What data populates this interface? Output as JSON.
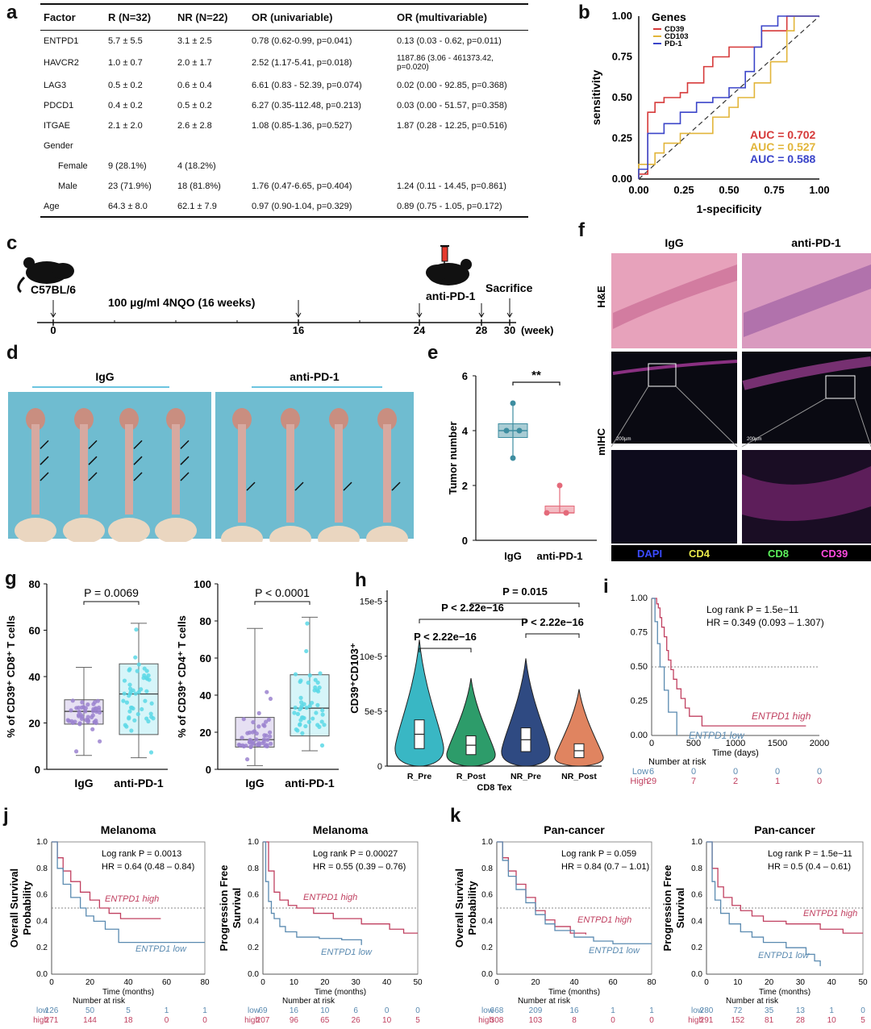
{
  "panels": {
    "a": "a",
    "b": "b",
    "c": "c",
    "d": "d",
    "e": "e",
    "f": "f",
    "g": "g",
    "h": "h",
    "i": "i",
    "j": "j",
    "k": "k"
  },
  "table": {
    "headers": [
      "Factor",
      "R (N=32)",
      "NR (N=22)",
      "OR (univariable)",
      "OR (multivariable)"
    ],
    "rows": [
      [
        "ENTPD1",
        "5.7 ± 5.5",
        "3.1 ± 2.5",
        "0.78 (0.62-0.99, p=0.041)",
        "0.13 (0.03 - 0.62, p=0.011)"
      ],
      [
        "HAVCR2",
        "1.0 ± 0.7",
        "2.0 ± 1.7",
        "2.52 (1.17-5.41, p=0.018)",
        "1187.86 (3.06 - 461373.42,\np=0.020)"
      ],
      [
        "LAG3",
        "0.5 ± 0.2",
        "0.6 ± 0.4",
        "6.61 (0.83 - 52.39, p=0.074)",
        "0.02 (0.00 - 92.85, p=0.368)"
      ],
      [
        "PDCD1",
        "0.4 ± 0.2",
        "0.5 ± 0.2",
        "6.27 (0.35-112.48, p=0.213)",
        "0.03 (0.00 - 51.57, p=0.358)"
      ],
      [
        "ITGAE",
        "2.1 ± 2.0",
        "2.6 ± 2.8",
        "1.08 (0.85-1.36, p=0.527)",
        "1.87 (0.28 - 12.25, p=0.516)"
      ],
      [
        "Gender",
        "",
        "",
        "",
        ""
      ],
      [
        "Female",
        "9 (28.1%)",
        "4 (18.2%)",
        "",
        ""
      ],
      [
        "Male",
        "23 (71.9%)",
        "18 (81.8%)",
        "1.76 (0.47-6.65, p=0.404)",
        "1.24 (0.11 - 14.45, p=0.861)"
      ],
      [
        "Age",
        "64.3 ± 8.0",
        "62.1 ± 7.9",
        "0.97 (0.90-1.04, p=0.329)",
        "0.89 (0.75 - 1.05, p=0.172)"
      ]
    ]
  },
  "chart_data": [
    {
      "panel": "b",
      "type": "line",
      "xlabel": "1-specificity",
      "ylabel": "sensitivity",
      "xlim": [
        0,
        1
      ],
      "ylim": [
        0,
        1
      ],
      "ticks": [
        "0.00",
        "0.25",
        "0.50",
        "0.75",
        "1.00"
      ],
      "legend_title": "Genes",
      "series": [
        {
          "name": "CD39",
          "color": "#d63a3a",
          "auc": "AUC = 0.702",
          "x": [
            0,
            0,
            0.05,
            0.05,
            0.09,
            0.09,
            0.14,
            0.14,
            0.23,
            0.23,
            0.27,
            0.27,
            0.36,
            0.36,
            0.41,
            0.41,
            0.5,
            0.5,
            0.68,
            0.68,
            0.82,
            0.82,
            1
          ],
          "y": [
            0,
            0.03,
            0.03,
            0.41,
            0.41,
            0.47,
            0.47,
            0.5,
            0.5,
            0.53,
            0.53,
            0.59,
            0.59,
            0.69,
            0.69,
            0.75,
            0.75,
            0.81,
            0.81,
            0.91,
            0.91,
            1,
            1
          ]
        },
        {
          "name": "CD103",
          "color": "#e2b53a",
          "auc": "AUC = 0.527",
          "x": [
            0,
            0,
            0.09,
            0.09,
            0.14,
            0.14,
            0.23,
            0.23,
            0.41,
            0.41,
            0.5,
            0.5,
            0.55,
            0.55,
            0.64,
            0.64,
            0.73,
            0.73,
            0.82,
            0.82,
            0.86,
            0.86,
            1
          ],
          "y": [
            0,
            0.09,
            0.09,
            0.16,
            0.16,
            0.22,
            0.22,
            0.28,
            0.28,
            0.38,
            0.38,
            0.44,
            0.44,
            0.5,
            0.5,
            0.59,
            0.59,
            0.72,
            0.72,
            0.91,
            0.91,
            1,
            1
          ]
        },
        {
          "name": "PD-1",
          "color": "#3b45c9",
          "auc": "AUC = 0.588",
          "x": [
            0,
            0,
            0.05,
            0.05,
            0.14,
            0.14,
            0.23,
            0.23,
            0.32,
            0.32,
            0.41,
            0.41,
            0.5,
            0.5,
            0.59,
            0.59,
            0.64,
            0.64,
            0.68,
            0.68,
            0.77,
            0.77,
            1
          ],
          "y": [
            0,
            0.06,
            0.06,
            0.28,
            0.28,
            0.34,
            0.34,
            0.41,
            0.41,
            0.47,
            0.47,
            0.5,
            0.5,
            0.56,
            0.56,
            0.66,
            0.66,
            0.81,
            0.81,
            0.94,
            0.94,
            1,
            1
          ]
        }
      ]
    },
    {
      "panel": "e",
      "type": "scatter",
      "ylabel": "Tumor number",
      "ylim": [
        0,
        6
      ],
      "yticks": [
        "0",
        "2",
        "4",
        "6"
      ],
      "significance": "**",
      "categories": [
        "IgG",
        "anti-PD-1"
      ],
      "groups": [
        {
          "name": "IgG",
          "values": [
            5,
            4,
            4,
            3
          ],
          "color": "#3d8da0"
        },
        {
          "name": "anti-PD-1",
          "values": [
            2,
            1,
            1,
            1
          ],
          "color": "#e46a7a"
        }
      ]
    },
    {
      "panel": "g1",
      "type": "scatter",
      "ylabel": "% of CD39⁺ CD8⁺ T cells",
      "ylim": [
        0,
        80
      ],
      "yticks": [
        "0",
        "20",
        "40",
        "60",
        "80"
      ],
      "pvalue": "P = 0.0069",
      "categories": [
        "IgG",
        "anti-PD-1"
      ],
      "box": [
        {
          "min": 6,
          "q1": 19.5,
          "median": 25,
          "q3": 30,
          "max": 44
        },
        {
          "min": 5,
          "q1": 15,
          "median": 32.5,
          "q3": 45.5,
          "max": 63
        }
      ]
    },
    {
      "panel": "g2",
      "type": "scatter",
      "ylabel": "% of CD39⁺ CD4⁺ T cells",
      "ylim": [
        0,
        100
      ],
      "yticks": [
        "0",
        "20",
        "40",
        "60",
        "80",
        "100"
      ],
      "pvalue": "P < 0.0001",
      "categories": [
        "IgG",
        "anti-PD-1"
      ],
      "box": [
        {
          "min": 2,
          "q1": 12,
          "median": 16,
          "q3": 28,
          "max": 76
        },
        {
          "min": 10,
          "q1": 18,
          "median": 33,
          "q3": 51,
          "max": 82
        }
      ]
    },
    {
      "panel": "h",
      "type": "violin",
      "ylabel": "CD39⁺CD103⁺",
      "xlabel": "CD8 Tex",
      "yticks": [
        "0",
        "5e-5",
        "10e-5",
        "15e-5"
      ],
      "categories": [
        "R_Pre",
        "R_Post",
        "NR_Pre",
        "NR_Post"
      ],
      "medians": [
        2.9,
        1.9,
        2.4,
        1.4
      ],
      "colors": [
        "#39b7c4",
        "#2d9c6a",
        "#2f4a82",
        "#e08460"
      ],
      "comparisons": [
        "P < 2.22e−16",
        "P < 2.22e−16",
        "P < 2.22e−16",
        "P = 0.015"
      ]
    },
    {
      "panel": "i",
      "type": "line",
      "xlabel": "Time (days)",
      "xlim": [
        0,
        2000
      ],
      "ylim": [
        0,
        1
      ],
      "xticks": [
        "0",
        "500",
        "1000",
        "1500",
        "2000"
      ],
      "yticks": [
        "0.00",
        "0.25",
        "0.50",
        "0.75",
        "1.00"
      ],
      "annotation": [
        "Log rank P = 1.5e−11",
        "HR = 0.349 (0.093 – 1.307)"
      ],
      "series": [
        {
          "name": "ENTPD1 high",
          "color": "#c04060",
          "x": [
            0,
            60,
            80,
            100,
            120,
            150,
            180,
            200,
            230,
            260,
            300,
            350,
            400,
            450,
            600,
            800,
            1000,
            1400,
            1500,
            1840
          ],
          "y": [
            1,
            0.96,
            0.93,
            0.86,
            0.79,
            0.72,
            0.62,
            0.55,
            0.48,
            0.41,
            0.34,
            0.27,
            0.2,
            0.14,
            0.07,
            0.07,
            0.07,
            0.07,
            0.07,
            0.07
          ]
        },
        {
          "name": "ENTPD1 low",
          "color": "#5a8ab0",
          "x": [
            0,
            40,
            70,
            100,
            150,
            200,
            260,
            300
          ],
          "y": [
            1,
            0.83,
            0.67,
            0.5,
            0.33,
            0.17,
            0.17,
            0
          ]
        }
      ],
      "risk_title": "Number at risk",
      "risk": [
        {
          "name": "Low",
          "values": [
            "6",
            "0",
            "0",
            "0",
            "0"
          ]
        },
        {
          "name": "High",
          "values": [
            "29",
            "7",
            "2",
            "1",
            "0"
          ]
        }
      ]
    },
    {
      "panel": "j1",
      "type": "line",
      "title": "Melanoma",
      "xlabel": "Time (months)",
      "ylabel": "Overall Survival Probability",
      "xlim": [
        0,
        80
      ],
      "xticks": [
        "0",
        "20",
        "40",
        "60",
        "80"
      ],
      "yticks": [
        "0.0",
        "0.2",
        "0.4",
        "0.6",
        "0.8",
        "1.0"
      ],
      "annotation": [
        "Log rank P = 0.0013",
        "HR = 0.64 (0.48 – 0.84)"
      ],
      "series": [
        {
          "name": "ENTPD1 high",
          "color": "#c04060",
          "x": [
            0,
            3,
            6,
            10,
            15,
            20,
            25,
            30,
            36,
            38,
            57
          ],
          "y": [
            1,
            0.88,
            0.78,
            0.7,
            0.62,
            0.56,
            0.5,
            0.46,
            0.42,
            0.42,
            0.42
          ]
        },
        {
          "name": "ENTPD1 low",
          "color": "#5a8ab0",
          "x": [
            0,
            3,
            6,
            10,
            15,
            18,
            22,
            28,
            35,
            40,
            80
          ],
          "y": [
            1,
            0.8,
            0.68,
            0.58,
            0.5,
            0.44,
            0.4,
            0.34,
            0.24,
            0.24,
            0.24
          ]
        }
      ],
      "risk_title": "Number at risk",
      "risk": [
        {
          "name": "low",
          "values": [
            "126",
            "50",
            "5",
            "1",
            "1"
          ]
        },
        {
          "name": "high",
          "values": [
            "271",
            "144",
            "18",
            "0",
            "0"
          ]
        }
      ]
    },
    {
      "panel": "j2",
      "type": "line",
      "title": "Melanoma",
      "xlabel": "Time (months)",
      "ylabel": "Progression Free Survival",
      "xlim": [
        0,
        55
      ],
      "xticks": [
        "0",
        "10",
        "20",
        "30",
        "40",
        "50"
      ],
      "yticks": [
        "0.0",
        "0.2",
        "0.4",
        "0.6",
        "0.8",
        "1.0"
      ],
      "annotation": [
        "Log rank P = 0.00027",
        "HR = 0.55 (0.39 – 0.76)"
      ],
      "series": [
        {
          "name": "ENTPD1 high",
          "color": "#c04060",
          "x": [
            0,
            2,
            4,
            6,
            9,
            12,
            18,
            25,
            35,
            45,
            50,
            55
          ],
          "y": [
            1,
            0.78,
            0.62,
            0.56,
            0.52,
            0.5,
            0.46,
            0.42,
            0.38,
            0.34,
            0.31,
            0.31
          ]
        },
        {
          "name": "ENTPD1 low",
          "color": "#5a8ab0",
          "x": [
            0,
            1,
            2,
            3,
            4,
            6,
            8,
            12,
            20,
            28,
            35
          ],
          "y": [
            1,
            0.7,
            0.55,
            0.46,
            0.42,
            0.36,
            0.32,
            0.28,
            0.27,
            0.26,
            0.22
          ]
        }
      ],
      "risk_title": "Number at risk",
      "risk": [
        {
          "name": "low",
          "values": [
            "69",
            "16",
            "10",
            "6",
            "0",
            "0"
          ]
        },
        {
          "name": "high",
          "values": [
            "207",
            "96",
            "65",
            "26",
            "10",
            "5"
          ]
        }
      ]
    },
    {
      "panel": "k1",
      "type": "line",
      "title": "Pan-cancer",
      "xlabel": "Time (months)",
      "ylabel": "Overall Survival Probability",
      "xlim": [
        0,
        80
      ],
      "xticks": [
        "0",
        "20",
        "40",
        "60",
        "80"
      ],
      "yticks": [
        "0.0",
        "0.2",
        "0.4",
        "0.6",
        "0.8",
        "1.0"
      ],
      "annotation": [
        "Log rank P = 0.059",
        "HR = 0.84 (0.7 – 1.01)"
      ],
      "series": [
        {
          "name": "ENTPD1 high",
          "color": "#c04060",
          "x": [
            0,
            3,
            6,
            10,
            15,
            20,
            25,
            30,
            38,
            46
          ],
          "y": [
            1,
            0.88,
            0.78,
            0.68,
            0.58,
            0.48,
            0.41,
            0.36,
            0.31,
            0.3
          ]
        },
        {
          "name": "ENTPD1 low",
          "color": "#5a8ab0",
          "x": [
            0,
            3,
            6,
            10,
            15,
            20,
            25,
            30,
            40,
            50,
            60,
            80
          ],
          "y": [
            1,
            0.86,
            0.74,
            0.64,
            0.54,
            0.45,
            0.38,
            0.33,
            0.28,
            0.25,
            0.23,
            0.23
          ]
        }
      ],
      "risk_title": "Number at risk",
      "risk": [
        {
          "name": "low",
          "values": [
            "668",
            "209",
            "16",
            "1",
            "1"
          ]
        },
        {
          "name": "high",
          "values": [
            "308",
            "103",
            "8",
            "0",
            "0"
          ]
        }
      ]
    },
    {
      "panel": "k2",
      "type": "line",
      "title": "Pan-cancer",
      "xlabel": "Time (months)",
      "ylabel": "Progression Free Survival",
      "xlim": [
        0,
        55
      ],
      "xticks": [
        "0",
        "10",
        "20",
        "30",
        "40",
        "50"
      ],
      "yticks": [
        "0.0",
        "0.2",
        "0.4",
        "0.6",
        "0.8",
        "1.0"
      ],
      "annotation": [
        "Log rank P = 1.5e−11",
        "HR = 0.5 (0.4 – 0.61)"
      ],
      "series": [
        {
          "name": "ENTPD1 high",
          "color": "#c04060",
          "x": [
            0,
            2,
            4,
            6,
            9,
            12,
            16,
            20,
            28,
            40,
            48,
            55
          ],
          "y": [
            1,
            0.8,
            0.66,
            0.58,
            0.52,
            0.48,
            0.44,
            0.4,
            0.38,
            0.34,
            0.31,
            0.31
          ]
        },
        {
          "name": "ENTPD1 low",
          "color": "#5a8ab0",
          "x": [
            0,
            2,
            3,
            5,
            8,
            12,
            16,
            20,
            28,
            35,
            38,
            40
          ],
          "y": [
            1,
            0.7,
            0.56,
            0.46,
            0.38,
            0.32,
            0.28,
            0.24,
            0.2,
            0.15,
            0.1,
            0.06
          ]
        }
      ],
      "risk_title": "Number at risk",
      "risk": [
        {
          "name": "low",
          "values": [
            "280",
            "72",
            "35",
            "13",
            "1",
            "0"
          ]
        },
        {
          "name": "high",
          "values": [
            "291",
            "152",
            "81",
            "28",
            "10",
            "5"
          ]
        }
      ]
    }
  ],
  "timeline": {
    "strain": "C57BL/6",
    "treatment": "100 µg/ml 4NQO (16 weeks)",
    "drug": "anti-PD-1",
    "end": "Sacrifice",
    "ticks": [
      "0",
      "16",
      "24",
      "28",
      "30"
    ],
    "unit": "(week)"
  },
  "photos": {
    "left": "IgG",
    "right": "anti-PD-1"
  },
  "histology": {
    "col_labels": [
      "IgG",
      "anti-PD-1"
    ],
    "row_labels": [
      "H&E",
      "mIHC"
    ],
    "scale": "200µm",
    "channels": [
      {
        "name": "DAPI",
        "color": "#3a4bff"
      },
      {
        "name": "CD4",
        "color": "#e8e84a"
      },
      {
        "name": "CD8",
        "color": "#5cf25c"
      },
      {
        "name": "CD39",
        "color": "#ff4adf"
      }
    ]
  }
}
